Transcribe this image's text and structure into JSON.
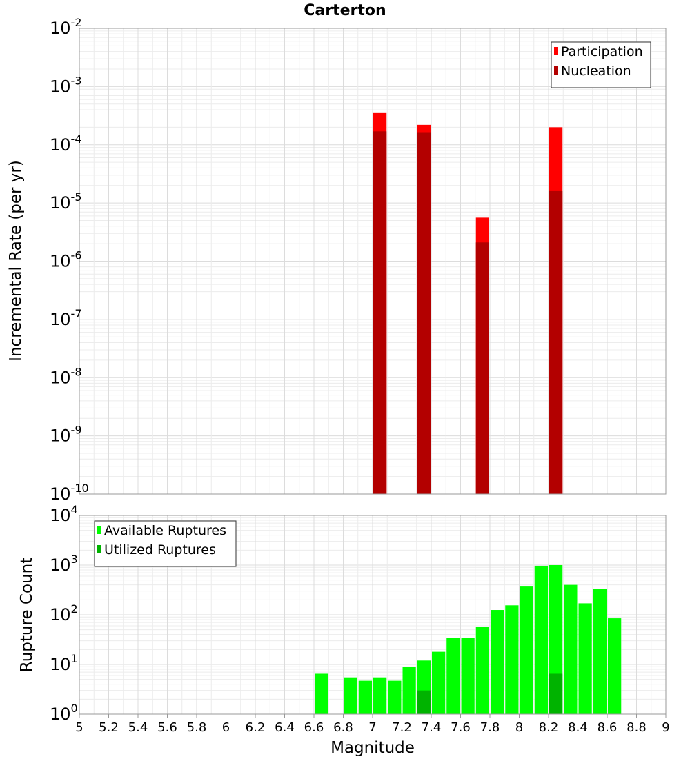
{
  "chart_data": {
    "title": "Carterton",
    "xlabel": "Magnitude",
    "xlim": [
      5,
      9
    ],
    "x_ticks": [
      "5",
      "5.2",
      "5.4",
      "5.6",
      "5.8",
      "6",
      "6.2",
      "6.4",
      "6.6",
      "6.8",
      "7",
      "7.2",
      "7.4",
      "7.6",
      "7.8",
      "8",
      "8.2",
      "8.4",
      "8.6",
      "8.8",
      "9"
    ],
    "bin_width": 0.1,
    "panels": [
      {
        "type": "bar",
        "ylabel": "Incremental Rate (per yr)",
        "yscale": "log",
        "ylim_exponents": [
          -10,
          -2
        ],
        "y_ticks": [
          {
            "base": "10",
            "exp": "-2"
          },
          {
            "base": "10",
            "exp": "-3"
          },
          {
            "base": "10",
            "exp": "-4"
          },
          {
            "base": "10",
            "exp": "-5"
          },
          {
            "base": "10",
            "exp": "-6"
          },
          {
            "base": "10",
            "exp": "-7"
          },
          {
            "base": "10",
            "exp": "-8"
          },
          {
            "base": "10",
            "exp": "-9"
          },
          {
            "base": "10",
            "exp": "-10"
          }
        ],
        "legend": {
          "position": "top-right",
          "entries": [
            "Participation",
            "Nucleation"
          ]
        },
        "series": [
          {
            "name": "Participation",
            "color": "#ff0000",
            "points": [
              {
                "x": 7.05,
                "y": 0.00035
              },
              {
                "x": 7.35,
                "y": 0.00022
              },
              {
                "x": 7.75,
                "y": 5.6e-06
              },
              {
                "x": 8.25,
                "y": 0.0002
              }
            ]
          },
          {
            "name": "Nucleation",
            "color": "#b30000",
            "points": [
              {
                "x": 7.05,
                "y": 0.00017
              },
              {
                "x": 7.35,
                "y": 0.00016
              },
              {
                "x": 7.75,
                "y": 2.1e-06
              },
              {
                "x": 8.25,
                "y": 1.6e-05
              }
            ]
          }
        ]
      },
      {
        "type": "bar",
        "ylabel": "Rupture Count",
        "yscale": "log",
        "ylim_exponents": [
          0,
          4
        ],
        "y_ticks": [
          {
            "base": "10",
            "exp": "4"
          },
          {
            "base": "10",
            "exp": "3"
          },
          {
            "base": "10",
            "exp": "2"
          },
          {
            "base": "10",
            "exp": "1"
          },
          {
            "base": "10",
            "exp": "0"
          }
        ],
        "legend": {
          "position": "top-left",
          "entries": [
            "Available Ruptures",
            "Utilized Ruptures"
          ]
        },
        "series": [
          {
            "name": "Available Ruptures",
            "color": "#00ff00",
            "points": [
              {
                "x": 6.65,
                "y": 6.5
              },
              {
                "x": 6.85,
                "y": 5.5
              },
              {
                "x": 6.95,
                "y": 4.7
              },
              {
                "x": 7.05,
                "y": 5.5
              },
              {
                "x": 7.15,
                "y": 4.7
              },
              {
                "x": 7.25,
                "y": 9
              },
              {
                "x": 7.35,
                "y": 12
              },
              {
                "x": 7.45,
                "y": 18
              },
              {
                "x": 7.55,
                "y": 34
              },
              {
                "x": 7.65,
                "y": 34
              },
              {
                "x": 7.75,
                "y": 58
              },
              {
                "x": 7.85,
                "y": 125
              },
              {
                "x": 7.95,
                "y": 155
              },
              {
                "x": 8.05,
                "y": 370
              },
              {
                "x": 8.15,
                "y": 970
              },
              {
                "x": 8.25,
                "y": 1000
              },
              {
                "x": 8.35,
                "y": 400
              },
              {
                "x": 8.45,
                "y": 170
              },
              {
                "x": 8.55,
                "y": 330
              },
              {
                "x": 8.65,
                "y": 85
              }
            ]
          },
          {
            "name": "Utilized Ruptures",
            "color": "#00b300",
            "points": [
              {
                "x": 7.05,
                "y": 1
              },
              {
                "x": 7.35,
                "y": 3
              },
              {
                "x": 7.75,
                "y": 1
              },
              {
                "x": 8.25,
                "y": 6.5
              }
            ]
          }
        ]
      }
    ]
  }
}
